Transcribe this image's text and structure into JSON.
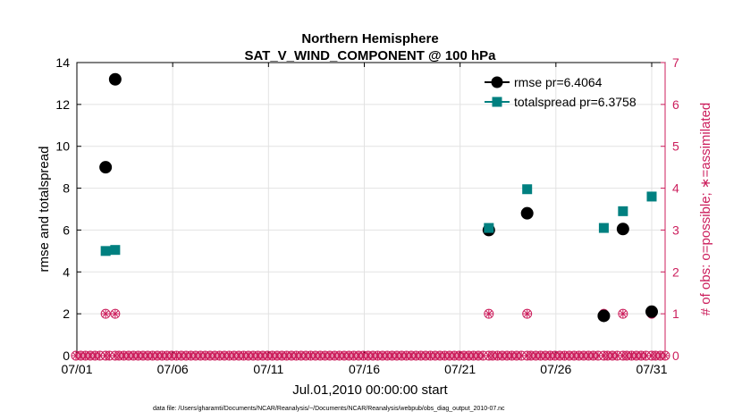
{
  "chart_data": {
    "type": "scatter",
    "title": "Northern Hemisphere",
    "subtitle": "SAT_V_WIND_COMPONENT @ 100 hPa",
    "xlabel": "Jul.01,2010 00:00:00 start",
    "ylabel": "rmse and totalspread",
    "ylabel_right": "# of obs: o=possible; ∗=assimilated",
    "xlim": [
      1,
      31.7
    ],
    "ylim": [
      0,
      14
    ],
    "ylim_right": [
      0,
      7
    ],
    "x_ticks": [
      1,
      6,
      11,
      16,
      21,
      26,
      31
    ],
    "x_tick_labels": [
      "07/01",
      "07/06",
      "07/11",
      "07/16",
      "07/21",
      "07/26",
      "07/31"
    ],
    "y_ticks": [
      0,
      2,
      4,
      6,
      8,
      10,
      12,
      14
    ],
    "y_ticks_right": [
      0,
      1,
      2,
      3,
      4,
      5,
      6,
      7
    ],
    "grid": true,
    "legend_position": "top-right",
    "series": [
      {
        "name": "rmse pr=6.4064",
        "color": "#000000",
        "marker": "circle",
        "x": [
          2.5,
          3.0,
          22.5,
          24.5,
          28.5,
          29.5,
          31.0
        ],
        "y": [
          9.0,
          13.2,
          6.0,
          6.8,
          1.9,
          6.05,
          2.1
        ]
      },
      {
        "name": "totalspread pr=6.3758",
        "color": "#008080",
        "marker": "square",
        "x": [
          2.5,
          3.0,
          22.5,
          24.5,
          28.5,
          29.5,
          31.0
        ],
        "y": [
          5.0,
          5.05,
          6.1,
          7.95,
          6.1,
          6.9,
          7.6
        ]
      }
    ],
    "obs_possible": {
      "color": "#cc1f5d",
      "x": [
        2.5,
        3.0,
        22.5,
        24.5,
        28.5,
        29.5,
        31.0
      ],
      "count": [
        1,
        1,
        1,
        1,
        1,
        1,
        1
      ]
    },
    "obs_assimilated": {
      "color": "#cc1f5d",
      "x": [
        2.5,
        3.0,
        22.5,
        24.5,
        28.5,
        29.5,
        31.0
      ],
      "count": [
        1,
        1,
        1,
        1,
        1,
        1,
        1
      ]
    },
    "obs_zero_interval_days": 0.25
  },
  "footnote": "data file: /Users/gharamti/Documents/NCAR/Reanalysis/~/Documents/NCAR/Reanalysis/webpub/obs_diag_output_2010-07.nc"
}
